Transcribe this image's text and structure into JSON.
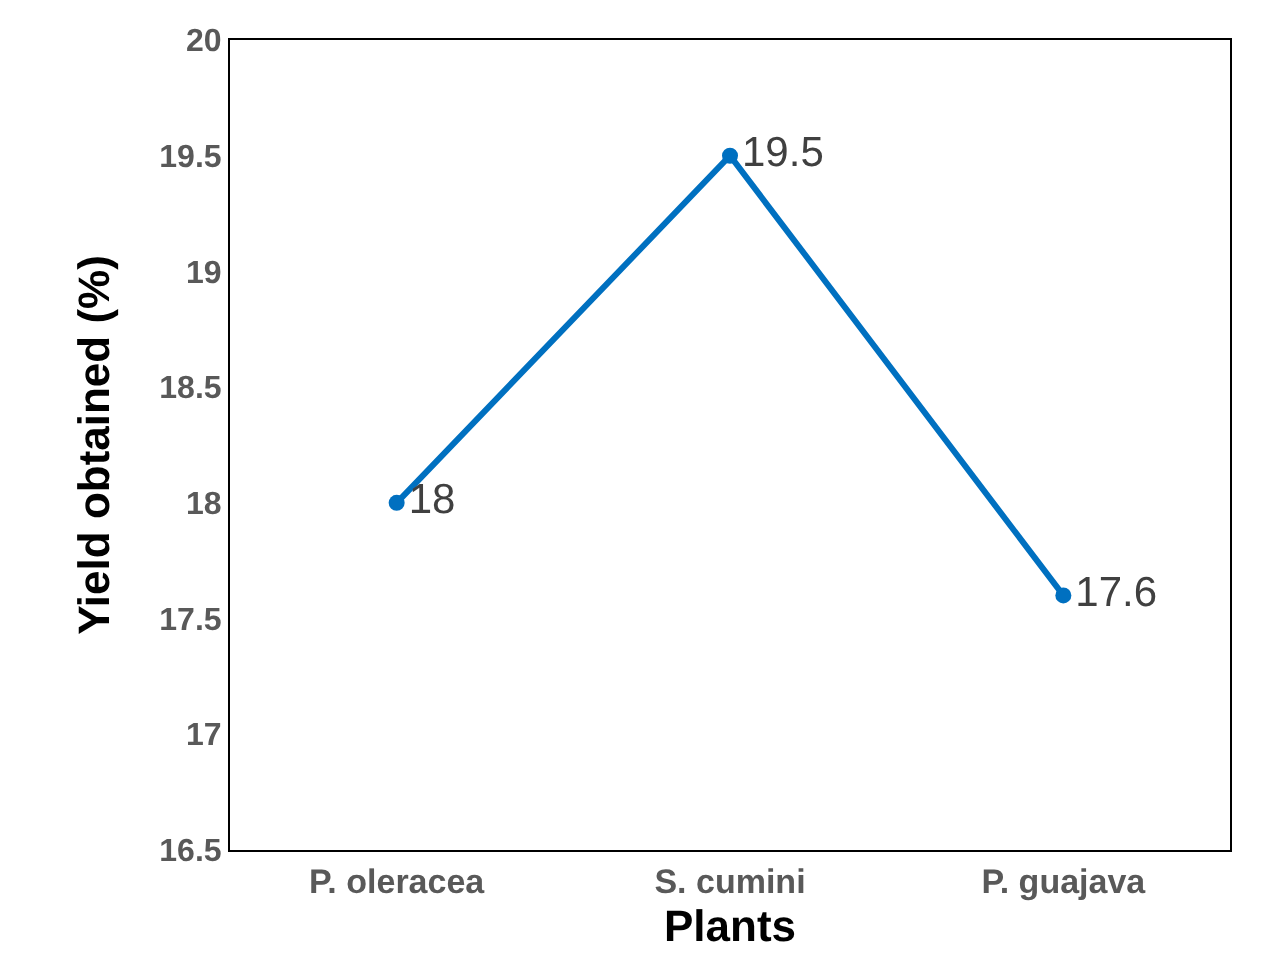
{
  "chart_data": {
    "type": "line",
    "xlabel": "Plants",
    "ylabel": "Yield obtained (%)",
    "categories": [
      "P. oleracea",
      "S. cumini",
      "P. guajava"
    ],
    "series": [
      {
        "color": "#0070c0",
        "values": [
          18,
          19.5,
          17.6
        ]
      }
    ],
    "ylim": [
      16.5,
      20
    ],
    "yticks": [
      "16.5",
      "17",
      "17.5",
      "18",
      "18.5",
      "19",
      "19.5",
      "20"
    ],
    "data_labels": true,
    "marker": "circle",
    "line_style": "solid"
  }
}
